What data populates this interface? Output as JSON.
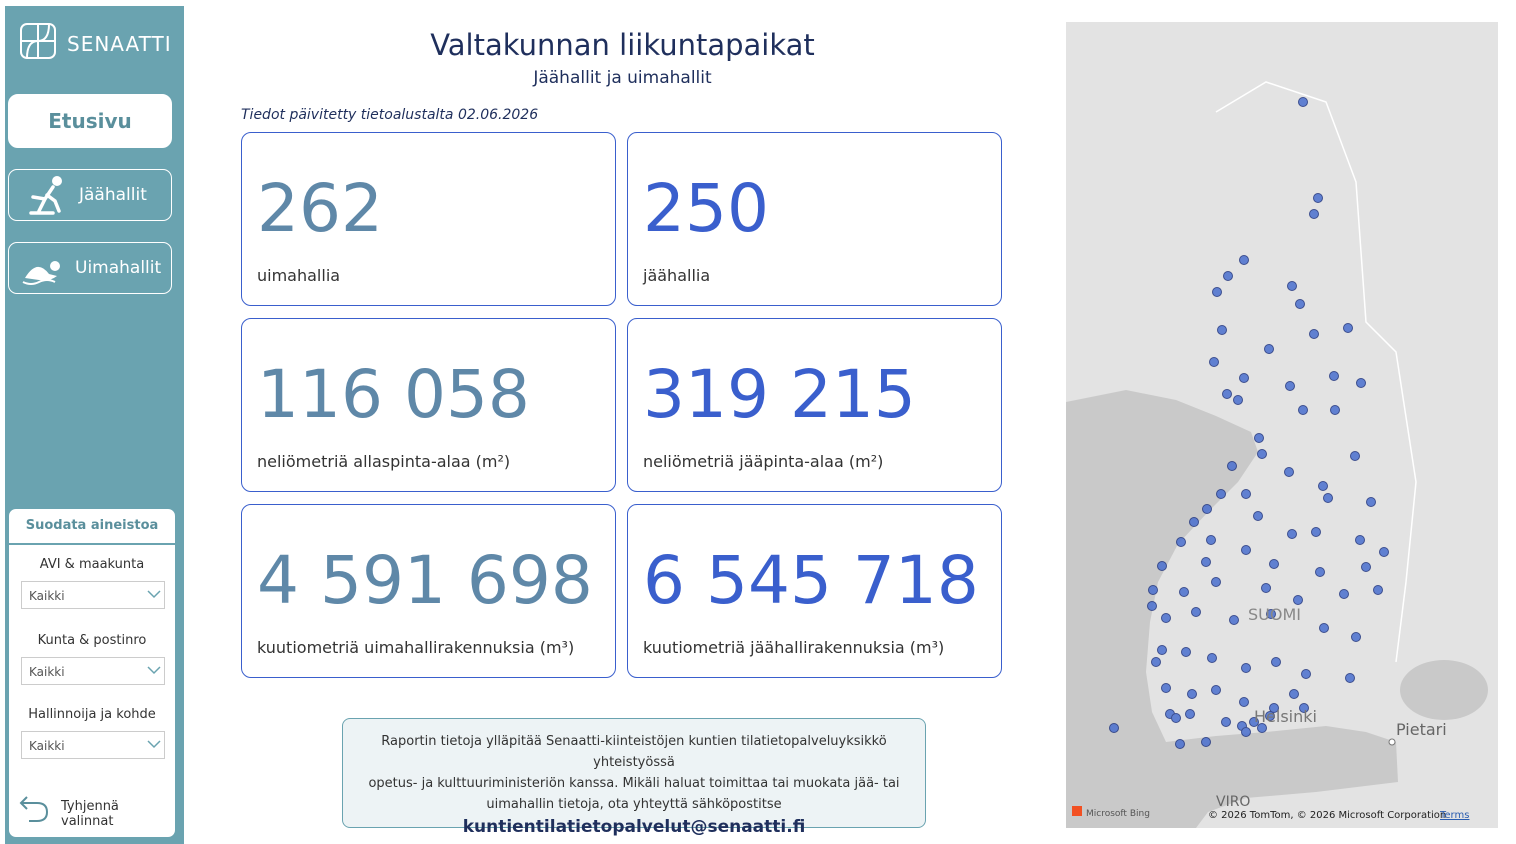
{
  "sidebar": {
    "logo": "SENAATTI",
    "nav": [
      {
        "label": "Etusivu"
      },
      {
        "label": "Jäähallit"
      },
      {
        "label": "Uimahallit"
      }
    ],
    "filter": {
      "title": "Suodata aineistoa",
      "fields": [
        {
          "label": "AVI & maakunta",
          "value": "Kaikki"
        },
        {
          "label": "Kunta & postinro",
          "value": "Kaikki"
        },
        {
          "label": "Hallinnoija ja kohde",
          "value": "Kaikki"
        }
      ],
      "clear": "Tyhjennä valinnat"
    }
  },
  "header": {
    "title": "Valtakunnan liikuntapaikat",
    "subtitle": "Jäähallit ja uimahallit",
    "updated": "Tiedot päivitetty tietoalustalta 02.06.2026"
  },
  "cards": [
    {
      "value": "262",
      "label": "uimahallia"
    },
    {
      "value": "250",
      "label": "jäähallia"
    },
    {
      "value": "116 058",
      "label": "neliömetriä allaspinta-alaa (m²)"
    },
    {
      "value": "319 215",
      "label": "neliömetriä jääpinta-alaa (m²)"
    },
    {
      "value": "4 591 698",
      "label": "kuutiometriä uimahallirakennuksia (m³)"
    },
    {
      "value": "6 545 718",
      "label": "kuutiometriä jäähallirakennuksia (m³)"
    }
  ],
  "info": {
    "lines": [
      "Raportin tietoja ylläpitää Senaatti-kiinteistöjen kuntien tilatietopalveluyksikkö yhteistyössä",
      "opetus- ja kulttuuriministeriön kanssa. Mikäli haluat toimittaa tai muokata jää- tai",
      "uimahallin tietoja, ota yhteyttä sähköpostitse"
    ],
    "email": "kuntientilatietopalvelut@senaatti.fi"
  },
  "map": {
    "labels": [
      "SUOMI",
      "Helsinki",
      "Pietari",
      "VIRO"
    ],
    "provider": "Microsoft Bing",
    "copyright": "© 2026 TomTom, © 2026 Microsoft Corporation",
    "terms": "Terms"
  }
}
